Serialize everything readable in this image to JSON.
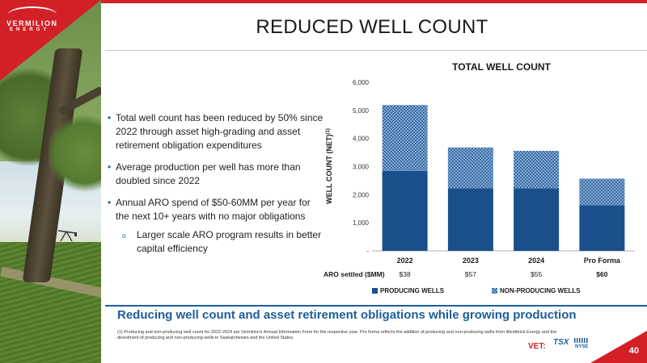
{
  "brand": {
    "name": "VERMILION",
    "sub": "ENERGY",
    "accent": "#d32027",
    "blue": "#1f5d99"
  },
  "slide": {
    "title": "REDUCED WELL COUNT",
    "page": "40",
    "banner": "Reducing well count and asset retirement obligations while growing production",
    "footnote": "(1) Producing and non-producing well count for 2022-2024 per Vermilion's Annual Information Form for the respective year. Pro forma reflects the addition of producing and non-producing wells from Westbrick Energy and the divestment of producing and non-producing wells in Saskatchewan and the United States.",
    "tickers": {
      "vet": "VET:",
      "tsx": "TSX",
      "nyse": "NYSE"
    }
  },
  "bullets": [
    "Total well count has been reduced by 50% since 2022 through asset high-grading and asset retirement obligation expenditures",
    "Average production per well has more than doubled since 2022",
    "Annual ARO spend of $50-60MM per year for the next 10+ years with no major obligations"
  ],
  "sub_bullets": [
    "Larger scale ARO program results in better capital efficiency"
  ],
  "chart_data": {
    "type": "bar",
    "stacked": true,
    "title": "TOTAL WELL COUNT",
    "ylabel": "WELL COUNT (NET)(1)",
    "ylim": [
      0,
      6000
    ],
    "yticks": [
      "-",
      "1,000",
      "2,000",
      "3,000",
      "4,000",
      "5,000",
      "6,000"
    ],
    "categories": [
      "2022",
      "2023",
      "2024",
      "Pro Forma"
    ],
    "series": [
      {
        "name": "PRODUCING WELLS",
        "color": "#1a4f8c",
        "values": [
          2850,
          2230,
          2230,
          1620
        ]
      },
      {
        "name": "NON-PRODUCING WELLS",
        "color": "#1a4f8c",
        "pattern": "crosshatch",
        "values": [
          2340,
          1450,
          1330,
          950
        ]
      }
    ],
    "aro_label": "ARO settled ($MM)",
    "aro_values": [
      "$38",
      "$57",
      "$55",
      "$60"
    ],
    "aro_bold_last": true,
    "legend_position": "bottom"
  }
}
